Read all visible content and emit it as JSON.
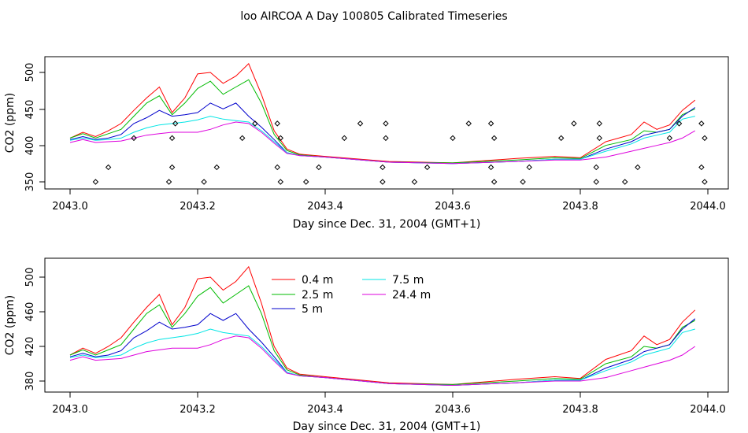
{
  "title": "loo AIRCOA A  Day 100805  Calibrated Timeseries",
  "colors": {
    "0.4 m": "#ff0000",
    "2.5 m": "#00bb00",
    "5 m": "#0000cc",
    "7.5 m": "#00e5e5",
    "24.4 m": "#dd00dd",
    "markers": "#000000",
    "frame": "#000000"
  },
  "chart_data": [
    {
      "type": "line",
      "xlabel": "Day since Dec. 31, 2004 (GMT+1)",
      "ylabel": "CO2 (ppm)",
      "xlim": [
        2043.0,
        2044.0
      ],
      "ylim": [
        345,
        520
      ],
      "xticks": [
        "2043.0",
        "2043.2",
        "2043.4",
        "2043.6",
        "2043.8",
        "2044.0"
      ],
      "yticks": [
        "350",
        "400",
        "450",
        "500"
      ],
      "grid": false,
      "legend": "none",
      "x": [
        2043.0,
        2043.02,
        2043.04,
        2043.06,
        2043.08,
        2043.1,
        2043.12,
        2043.14,
        2043.16,
        2043.18,
        2043.2,
        2043.22,
        2043.24,
        2043.26,
        2043.28,
        2043.3,
        2043.32,
        2043.34,
        2043.36,
        2043.4,
        2043.5,
        2043.6,
        2043.7,
        2043.76,
        2043.8,
        2043.84,
        2043.88,
        2043.9,
        2043.92,
        2043.94,
        2043.96,
        2043.98
      ],
      "series": [
        {
          "name": "0.4 m",
          "values": [
            410,
            418,
            412,
            420,
            430,
            448,
            465,
            480,
            445,
            465,
            498,
            500,
            485,
            495,
            512,
            470,
            420,
            395,
            388,
            385,
            378,
            376,
            382,
            385,
            383,
            405,
            415,
            432,
            422,
            428,
            448,
            462
          ]
        },
        {
          "name": "2.5 m",
          "values": [
            410,
            416,
            410,
            416,
            422,
            440,
            458,
            468,
            442,
            458,
            478,
            488,
            470,
            480,
            490,
            458,
            415,
            393,
            387,
            384,
            377,
            376,
            380,
            383,
            382,
            400,
            408,
            420,
            418,
            422,
            442,
            450
          ]
        },
        {
          "name": "5 m",
          "values": [
            408,
            412,
            408,
            410,
            415,
            430,
            438,
            448,
            440,
            442,
            445,
            458,
            450,
            458,
            440,
            425,
            408,
            390,
            386,
            384,
            377,
            375,
            378,
            381,
            381,
            395,
            405,
            414,
            418,
            422,
            440,
            452
          ]
        },
        {
          "name": "7.5 m",
          "values": [
            407,
            410,
            407,
            408,
            410,
            418,
            424,
            428,
            430,
            432,
            435,
            440,
            436,
            434,
            432,
            420,
            405,
            390,
            386,
            384,
            377,
            375,
            378,
            381,
            381,
            392,
            402,
            410,
            414,
            418,
            436,
            440
          ]
        },
        {
          "name": "24.4 m",
          "values": [
            404,
            408,
            404,
            405,
            406,
            410,
            414,
            416,
            418,
            418,
            418,
            422,
            428,
            432,
            430,
            418,
            403,
            389,
            386,
            384,
            377,
            375,
            378,
            380,
            380,
            384,
            392,
            396,
            400,
            404,
            410,
            420
          ]
        }
      ],
      "markers": {
        "x": [
          2043.04,
          2043.06,
          2043.1,
          2043.155,
          2043.16,
          2043.16,
          2043.165,
          2043.21,
          2043.23,
          2043.27,
          2043.29,
          2043.325,
          2043.325,
          2043.33,
          2043.33,
          2043.37,
          2043.39,
          2043.43,
          2043.455,
          2043.49,
          2043.49,
          2043.495,
          2043.495,
          2043.54,
          2043.56,
          2043.6,
          2043.625,
          2043.66,
          2043.66,
          2043.665,
          2043.665,
          2043.71,
          2043.72,
          2043.77,
          2043.79,
          2043.825,
          2043.825,
          2043.83,
          2043.83,
          2043.87,
          2043.89,
          2043.94,
          2043.955,
          2043.99,
          2043.99,
          2043.995,
          2043.995
        ],
        "y": [
          350,
          370,
          410,
          350,
          370,
          410,
          430,
          350,
          370,
          410,
          430,
          370,
          430,
          350,
          410,
          350,
          370,
          410,
          430,
          350,
          370,
          410,
          430,
          350,
          370,
          410,
          430,
          370,
          430,
          350,
          410,
          350,
          370,
          410,
          430,
          350,
          370,
          410,
          430,
          350,
          370,
          410,
          430,
          370,
          430,
          350,
          410
        ]
      }
    },
    {
      "type": "line",
      "xlabel": "Day since Dec. 31, 2004 (GMT+1)",
      "ylabel": "CO2 (ppm)",
      "xlim": [
        2043.0,
        2044.0
      ],
      "ylim": [
        372,
        520
      ],
      "xticks": [
        "2043.0",
        "2043.2",
        "2043.4",
        "2043.6",
        "2043.8",
        "2044.0"
      ],
      "yticks": [
        "380",
        "420",
        "460",
        "500"
      ],
      "grid": false,
      "legend": "top-center",
      "legend_entries": [
        "0.4 m",
        "2.5 m",
        "5 m",
        "7.5 m",
        "24.4 m"
      ],
      "series_ref": "same as chart 1"
    }
  ]
}
